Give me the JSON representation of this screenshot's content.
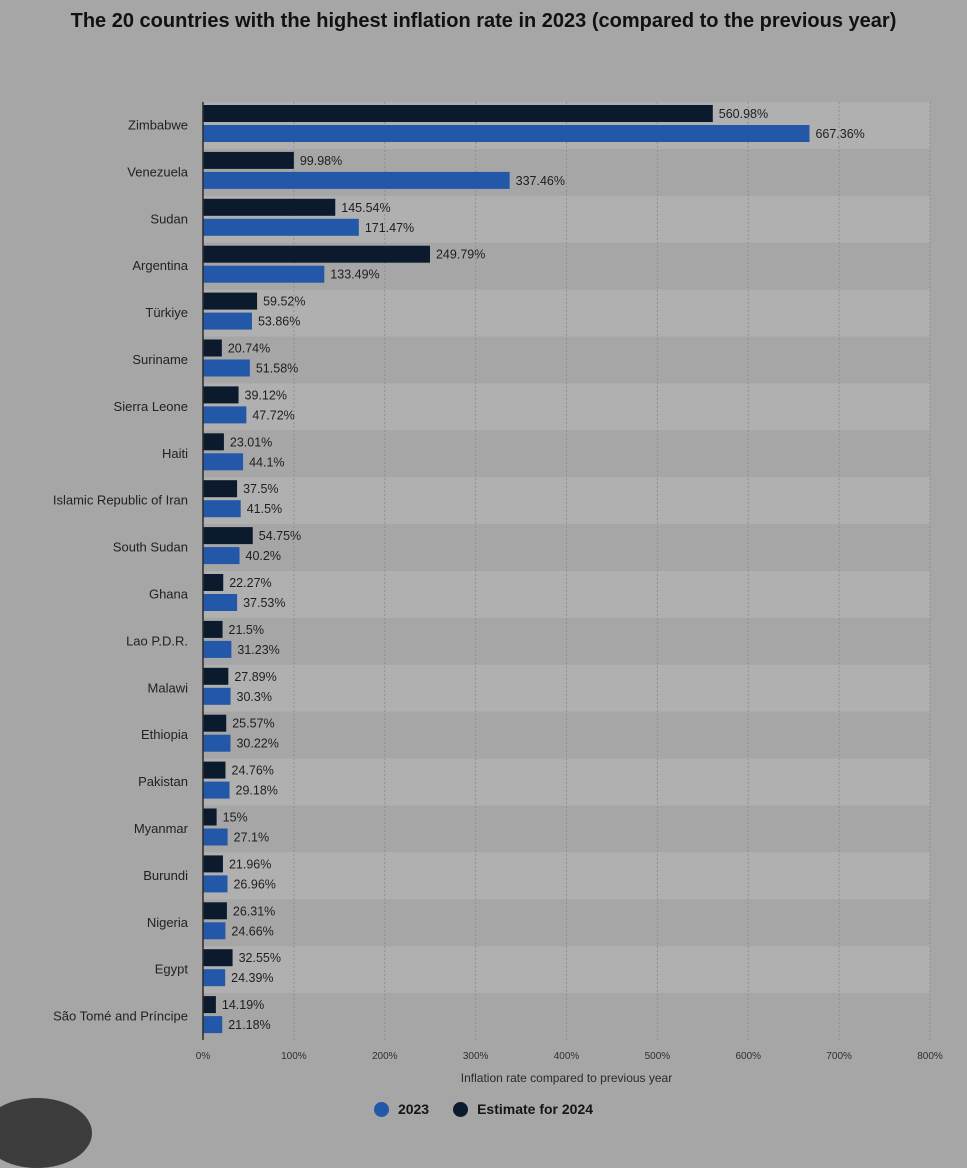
{
  "colors": {
    "background": "#a6a6a6",
    "band_alt": "#b0b0b0",
    "series_2023": "#2357a8",
    "series_2024": "#0c1a2e",
    "grid": "#8f8f8f"
  },
  "chart_data": {
    "type": "bar",
    "orientation": "horizontal",
    "title": "The 20 countries with the highest inflation rate in 2023 (compared to the previous year)",
    "xlabel": "Inflation rate compared to previous year",
    "ylabel": "",
    "xlim": [
      0,
      800
    ],
    "x_ticks": [
      "0%",
      "100%",
      "200%",
      "300%",
      "400%",
      "500%",
      "600%",
      "700%",
      "800%"
    ],
    "grid": true,
    "legend_position": "bottom-center",
    "categories": [
      "Zimbabwe",
      "Venezuela",
      "Sudan",
      "Argentina",
      "Türkiye",
      "Suriname",
      "Sierra Leone",
      "Haiti",
      "Islamic Republic of Iran",
      "South Sudan",
      "Ghana",
      "Lao P.D.R.",
      "Malawi",
      "Ethiopia",
      "Pakistan",
      "Myanmar",
      "Burundi",
      "Nigeria",
      "Egypt",
      "São Tomé and Príncipe"
    ],
    "series": [
      {
        "name": "Estimate for 2024",
        "values": [
          560.98,
          99.98,
          145.54,
          249.79,
          59.52,
          20.74,
          39.12,
          23.01,
          37.5,
          54.75,
          22.27,
          21.5,
          27.89,
          25.57,
          24.76,
          15,
          21.96,
          26.31,
          32.55,
          14.19
        ],
        "labels": [
          "560.98%",
          "99.98%",
          "145.54%",
          "249.79%",
          "59.52%",
          "20.74%",
          "39.12%",
          "23.01%",
          "37.5%",
          "54.75%",
          "22.27%",
          "21.5%",
          "27.89%",
          "25.57%",
          "24.76%",
          "15%",
          "21.96%",
          "26.31%",
          "32.55%",
          "14.19%"
        ]
      },
      {
        "name": "2023",
        "values": [
          667.36,
          337.46,
          171.47,
          133.49,
          53.86,
          51.58,
          47.72,
          44.1,
          41.5,
          40.2,
          37.53,
          31.23,
          30.3,
          30.22,
          29.18,
          27.1,
          26.96,
          24.66,
          24.39,
          21.18
        ],
        "labels": [
          "667.36%",
          "337.46%",
          "171.47%",
          "133.49%",
          "53.86%",
          "51.58%",
          "47.72%",
          "44.1%",
          "41.5%",
          "40.2%",
          "37.53%",
          "31.23%",
          "30.3%",
          "30.22%",
          "29.18%",
          "27.1%",
          "26.96%",
          "24.66%",
          "24.39%",
          "21.18%"
        ]
      }
    ]
  },
  "legend": [
    {
      "label": "2023",
      "color": "#2357a8"
    },
    {
      "label": "Estimate for 2024",
      "color": "#0c1a2e"
    }
  ]
}
